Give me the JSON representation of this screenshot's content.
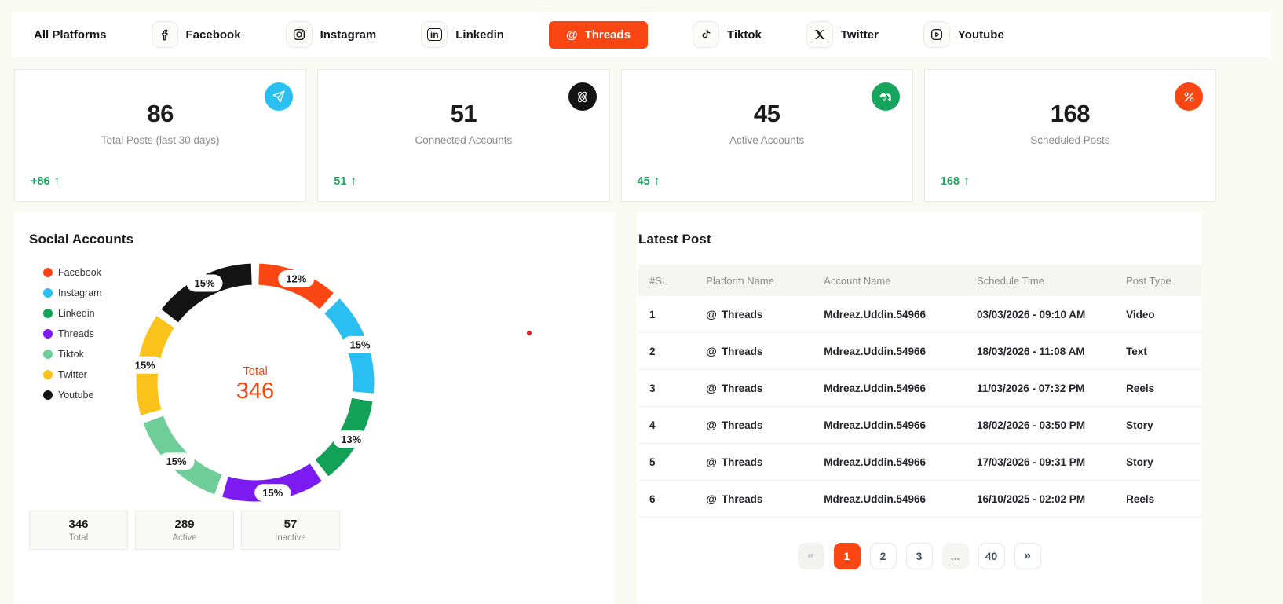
{
  "colors": {
    "accent": "#FA4612",
    "success_green": "#17A45C",
    "icon_cyan": "#29BFF0",
    "icon_black": "#141414",
    "icon_green": "#17A45C",
    "icon_orange": "#FA4612"
  },
  "nav": {
    "items": [
      {
        "label": "All Platforms",
        "icon": null,
        "active": false
      },
      {
        "label": "Facebook",
        "icon": "facebook-icon",
        "active": false
      },
      {
        "label": "Instagram",
        "icon": "instagram-icon",
        "active": false
      },
      {
        "label": "Linkedin",
        "icon": "linkedin-icon",
        "active": false
      },
      {
        "label": "Threads",
        "icon": "threads-icon",
        "active": true
      },
      {
        "label": "Tiktok",
        "icon": "tiktok-icon",
        "active": false
      },
      {
        "label": "Twitter",
        "icon": "twitter-icon",
        "active": false
      },
      {
        "label": "Youtube",
        "icon": "youtube-icon",
        "active": false
      }
    ]
  },
  "stats": [
    {
      "value": "86",
      "label": "Total Posts (last 30 days)",
      "delta": "+86",
      "icon": "send-icon",
      "icon_bg": "#29BFF0"
    },
    {
      "value": "51",
      "label": "Connected Accounts",
      "delta": "51",
      "icon": "atom-icon",
      "icon_bg": "#141414"
    },
    {
      "value": "45",
      "label": "Active Accounts",
      "delta": "45",
      "icon": "handshake-icon",
      "icon_bg": "#17A45C"
    },
    {
      "value": "168",
      "label": "Scheduled Posts",
      "delta": "168",
      "icon": "percent-icon",
      "icon_bg": "#FA4612"
    }
  ],
  "social_accounts": {
    "title": "Social Accounts",
    "summary": [
      {
        "value": "346",
        "label": "Total"
      },
      {
        "value": "289",
        "label": "Active"
      },
      {
        "value": "57",
        "label": "Inactive"
      }
    ]
  },
  "chart_data": {
    "type": "pie",
    "title": "Social Accounts",
    "subtype": "donut",
    "center_label": "Total",
    "center_value": "346",
    "legend_position": "left",
    "categories": [
      "Facebook",
      "Instagram",
      "Linkedin",
      "Threads",
      "Tiktok",
      "Twitter",
      "Youtube"
    ],
    "values": [
      12,
      15,
      13,
      15,
      15,
      15,
      15
    ],
    "unit": "%",
    "colors": [
      "#FA4612",
      "#29BFF0",
      "#13A157",
      "#7B1BF2",
      "#6FCD97",
      "#FBC21B",
      "#141414"
    ]
  },
  "latest_post": {
    "title": "Latest Post",
    "columns": [
      "#SL",
      "Platform Name",
      "Account Name",
      "Schedule Time",
      "Post Type"
    ],
    "rows": [
      {
        "sl": "1",
        "platform": "Threads",
        "account": "Mdreaz.Uddin.54966",
        "time": "03/03/2026 - 09:10 AM",
        "type": "Video"
      },
      {
        "sl": "2",
        "platform": "Threads",
        "account": "Mdreaz.Uddin.54966",
        "time": "18/03/2026 - 11:08 AM",
        "type": "Text"
      },
      {
        "sl": "3",
        "platform": "Threads",
        "account": "Mdreaz.Uddin.54966",
        "time": "11/03/2026 - 07:32 PM",
        "type": "Reels"
      },
      {
        "sl": "4",
        "platform": "Threads",
        "account": "Mdreaz.Uddin.54966",
        "time": "18/02/2026 - 03:50 PM",
        "type": "Story"
      },
      {
        "sl": "5",
        "platform": "Threads",
        "account": "Mdreaz.Uddin.54966",
        "time": "17/03/2026 - 09:31 PM",
        "type": "Story"
      },
      {
        "sl": "6",
        "platform": "Threads",
        "account": "Mdreaz.Uddin.54966",
        "type": "Reels",
        "time": "16/10/2025 - 02:02 PM"
      }
    ],
    "pagination": [
      {
        "label": "«",
        "kind": "prev"
      },
      {
        "label": "1",
        "kind": "page",
        "active": true
      },
      {
        "label": "2",
        "kind": "page"
      },
      {
        "label": "3",
        "kind": "page"
      },
      {
        "label": "...",
        "kind": "dots"
      },
      {
        "label": "40",
        "kind": "page"
      },
      {
        "label": "»",
        "kind": "next"
      }
    ]
  }
}
